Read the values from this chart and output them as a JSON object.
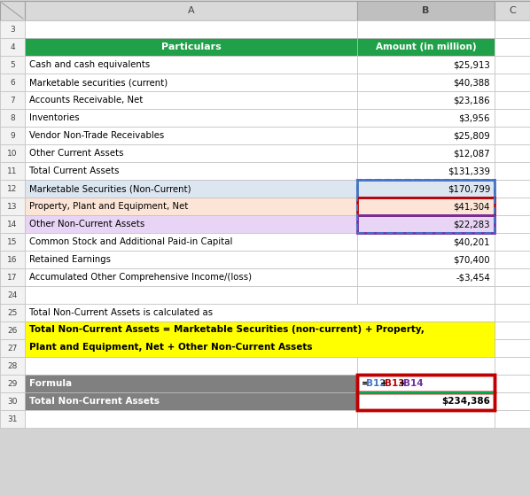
{
  "header_col_a": "Particulars",
  "header_col_b": "Amount (in million)",
  "header_bg": "#21a04a",
  "header_fg": "#ffffff",
  "data_rows": [
    {
      "row": 5,
      "col_a": "Cash and cash equivalents",
      "col_b": "$25,913",
      "bg_a": "#ffffff",
      "bg_b": "#ffffff",
      "highlight": null
    },
    {
      "row": 6,
      "col_a": "Marketable securities (current)",
      "col_b": "$40,388",
      "bg_a": "#ffffff",
      "bg_b": "#ffffff",
      "highlight": null
    },
    {
      "row": 7,
      "col_a": "Accounts Receivable, Net",
      "col_b": "$23,186",
      "bg_a": "#ffffff",
      "bg_b": "#ffffff",
      "highlight": null
    },
    {
      "row": 8,
      "col_a": "Inventories",
      "col_b": "$3,956",
      "bg_a": "#ffffff",
      "bg_b": "#ffffff",
      "highlight": null
    },
    {
      "row": 9,
      "col_a": "Vendor Non-Trade Receivables",
      "col_b": "$25,809",
      "bg_a": "#ffffff",
      "bg_b": "#ffffff",
      "highlight": null
    },
    {
      "row": 10,
      "col_a": "Other Current Assets",
      "col_b": "$12,087",
      "bg_a": "#ffffff",
      "bg_b": "#ffffff",
      "highlight": null
    },
    {
      "row": 11,
      "col_a": "Total Current Assets",
      "col_b": "$131,339",
      "bg_a": "#ffffff",
      "bg_b": "#ffffff",
      "highlight": null
    },
    {
      "row": 12,
      "col_a": "Marketable Securities (Non-Current)",
      "col_b": "$170,799",
      "bg_a": "#dce6f1",
      "bg_b": "#dce6f1",
      "highlight": "blue"
    },
    {
      "row": 13,
      "col_a": "Property, Plant and Equipment, Net",
      "col_b": "$41,304",
      "bg_a": "#fce4d6",
      "bg_b": "#fce4d6",
      "highlight": "red"
    },
    {
      "row": 14,
      "col_a": "Other Non-Current Assets",
      "col_b": "$22,283",
      "bg_a": "#e8d5f5",
      "bg_b": "#e8d5f5",
      "highlight": "purple"
    },
    {
      "row": 15,
      "col_a": "Common Stock and Additional Paid-in Capital",
      "col_b": "$40,201",
      "bg_a": "#ffffff",
      "bg_b": "#ffffff",
      "highlight": null
    },
    {
      "row": 16,
      "col_a": "Retained Earnings",
      "col_b": "$70,400",
      "bg_a": "#ffffff",
      "bg_b": "#ffffff",
      "highlight": null
    },
    {
      "row": 17,
      "col_a": "Accumulated Other Comprehensive Income/(loss)",
      "col_b": "-$3,454",
      "bg_a": "#ffffff",
      "bg_b": "#ffffff",
      "highlight": null
    }
  ],
  "text_row25": "Total Non-Current Assets is calculated as",
  "formula_line1": "Total Non-Current Assets = Marketable Securities (non-current) + Property,",
  "formula_line2": "Plant and Equipment, Net + Other Non-Current Assets",
  "formula_bg": "#ffff00",
  "formula_row29_label": "Formula",
  "formula_row29_parts": [
    {
      "text": "=",
      "color": "#000000"
    },
    {
      "text": "B12",
      "color": "#4472c4"
    },
    {
      "text": "+",
      "color": "#000000"
    },
    {
      "text": "B13",
      "color": "#c00000"
    },
    {
      "text": "+",
      "color": "#000000"
    },
    {
      "text": "B14",
      "color": "#7030a0"
    }
  ],
  "formula_row30_label": "Total Non-Current Assets",
  "formula_row30_value": "$234,386",
  "dark_bg": "#808080",
  "dark_fg": "#ffffff",
  "fig_bg": "#d3d3d3",
  "highlight_colors": {
    "blue": "#4472c4",
    "red": "#c00000",
    "purple": "#7030a0"
  },
  "col_header_bg": "#d9d9d9",
  "col_header_bg_b": "#bfbfbf",
  "rn_col_bg": "#f2f2f2",
  "grid_color": "#c0c0c0",
  "visible_rows": [
    3,
    4,
    5,
    6,
    7,
    8,
    9,
    10,
    11,
    12,
    13,
    14,
    15,
    16,
    17,
    24,
    25,
    26,
    27,
    28,
    29,
    30,
    31
  ]
}
